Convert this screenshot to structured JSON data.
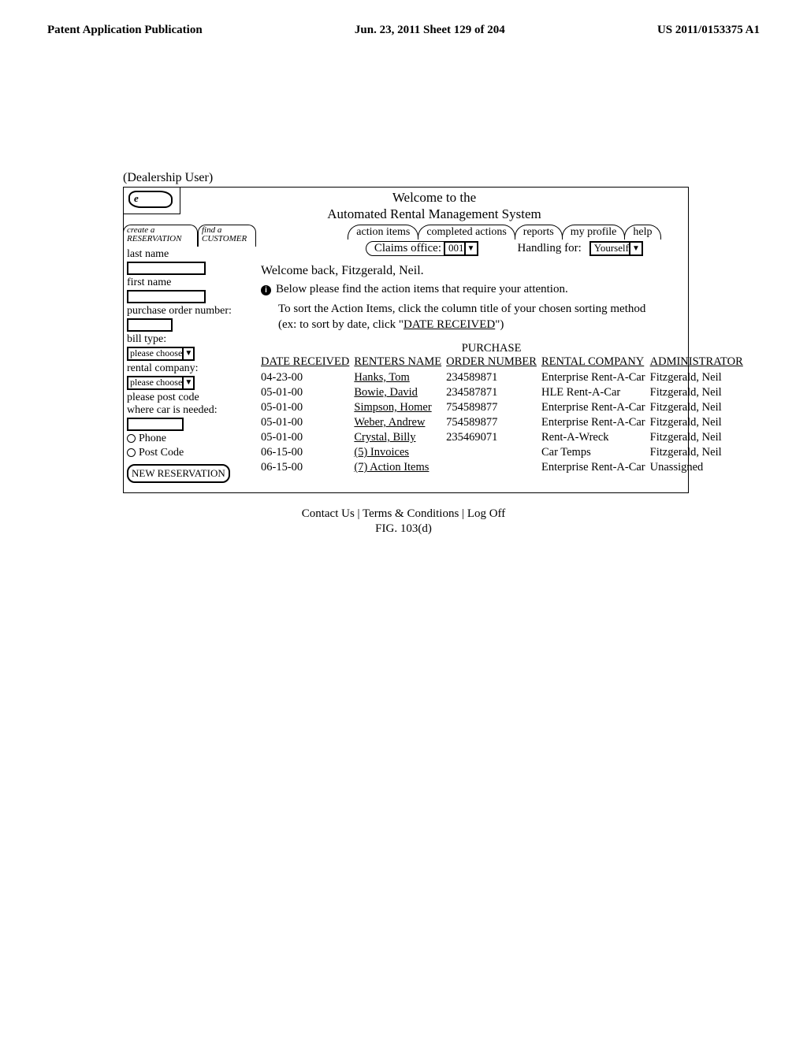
{
  "page_header": {
    "left": "Patent Application Publication",
    "center": "Jun. 23, 2011  Sheet 129 of 204",
    "right": "US 2011/0153375 A1"
  },
  "user_type": "(Dealership User)",
  "logo_letter": "e",
  "welcome": {
    "line1": "Welcome to the",
    "line2": "Automated Rental Management System"
  },
  "sidebar": {
    "tabs": {
      "left_line1": "create a",
      "left_line2": "RESERVATION",
      "right_line1": "find a",
      "right_line2": "CUSTOMER"
    },
    "last_name_label": "last name",
    "first_name_label": "first name",
    "po_label": "purchase order number:",
    "bill_type_label": "bill type:",
    "bill_type_value": "please choose",
    "rental_company_label": "rental company:",
    "rental_company_value": "please choose",
    "post_code_label1": "please post code",
    "post_code_label2": "where car is needed:",
    "radio_phone": "Phone",
    "radio_post": "Post Code",
    "new_reservation_btn": "NEW RESERVATION"
  },
  "top_tabs": [
    "action items",
    "completed actions",
    "reports",
    "my profile",
    "help"
  ],
  "filter": {
    "claims_office_label": "Claims office:",
    "claims_office_value": "001",
    "handling_label": "Handling for:",
    "handling_value": "Yourself"
  },
  "welcome_back": "Welcome back, Fitzgerald, Neil.",
  "attention_line": "Below please find the action items that require your attention.",
  "sort_hint_line1": "To sort the Action Items, click the column title of your chosen sorting method",
  "sort_hint_line2_pre": "(ex: to sort by date, click \"",
  "sort_hint_line2_link": "DATE RECEIVED",
  "sort_hint_line2_post": "\")",
  "table": {
    "headers": {
      "date": "DATE RECEIVED",
      "renter": "RENTERS NAME",
      "po_line1": "PURCHASE",
      "po_line2": "ORDER NUMBER",
      "company": "RENTAL COMPANY",
      "admin": "ADMINISTRATOR"
    },
    "rows": [
      {
        "date": "04-23-00",
        "renter": "Hanks, Tom",
        "po": "234589871",
        "company": "Enterprise Rent-A-Car",
        "admin": "Fitzgerald, Neil",
        "ul": true
      },
      {
        "date": "05-01-00",
        "renter": "Bowie, David",
        "po": "234587871",
        "company": "HLE Rent-A-Car",
        "admin": "Fitzgerald, Neil",
        "ul": true
      },
      {
        "date": "05-01-00",
        "renter": "Simpson, Homer",
        "po": "754589877",
        "company": "Enterprise Rent-A-Car",
        "admin": "Fitzgerald, Neil",
        "ul": true
      },
      {
        "date": "05-01-00",
        "renter": "Weber, Andrew",
        "po": "754589877",
        "company": "Enterprise Rent-A-Car",
        "admin": "Fitzgerald, Neil",
        "ul": true
      },
      {
        "date": "05-01-00",
        "renter": "Crystal, Billy",
        "po": "235469071",
        "company": "Rent-A-Wreck",
        "admin": "Fitzgerald, Neil",
        "ul": true
      },
      {
        "date": "06-15-00",
        "renter": "(5) Invoices",
        "po": "",
        "company": "Car Temps",
        "admin": "Fitzgerald, Neil",
        "ul": true
      },
      {
        "date": "06-15-00",
        "renter": "(7) Action Items",
        "po": "",
        "company": "Enterprise Rent-A-Car",
        "admin": "Unassigned",
        "ul": true
      }
    ]
  },
  "footer": "Contact Us | Terms & Conditions | Log Off",
  "figure_label": "FIG. 103(d)"
}
